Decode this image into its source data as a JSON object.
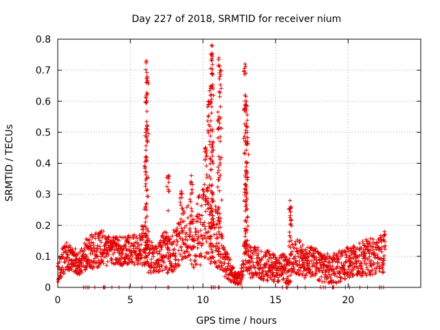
{
  "chart_data": {
    "type": "scatter",
    "title": "Day 227 of 2018, SRMTID for receiver nium",
    "xlabel": "GPS time / hours",
    "ylabel": "SRMTID / TECUs",
    "xlim": [
      0,
      25
    ],
    "ylim": [
      0,
      0.8
    ],
    "grid": true,
    "marker": "+",
    "color": "#e00000",
    "x_ticks": [
      0,
      5,
      10,
      15,
      20
    ],
    "x_tick_labels": [
      "0",
      "5",
      "10",
      "15",
      "20"
    ],
    "y_ticks": [
      0,
      0.1,
      0.2,
      0.3,
      0.4,
      0.5,
      0.6,
      0.7,
      0.8
    ],
    "y_tick_labels": [
      "0",
      "0.1",
      "0.2",
      "0.3",
      "0.4",
      "0.5",
      "0.6",
      "0.7",
      "0.8"
    ],
    "series": [
      {
        "name": "SRMTID",
        "envelope": {
          "x": [
            0.0,
            0.5,
            1.0,
            1.5,
            2.0,
            2.5,
            3.0,
            3.5,
            4.0,
            4.5,
            5.0,
            5.5,
            5.9,
            6.2,
            6.6,
            7.0,
            7.4,
            7.8,
            8.2,
            8.6,
            9.0,
            9.4,
            9.8,
            10.2,
            10.6,
            11.0,
            11.4,
            11.8,
            12.2,
            12.6,
            12.9,
            13.3,
            13.8,
            14.2,
            14.6,
            15.0,
            15.5,
            15.9,
            16.2,
            16.6,
            17.0,
            17.5,
            18.0,
            18.5,
            19.0,
            19.5,
            20.0,
            20.5,
            21.0,
            21.5,
            22.0,
            22.5
          ],
          "y": [
            0.05,
            0.1,
            0.09,
            0.08,
            0.11,
            0.12,
            0.13,
            0.12,
            0.12,
            0.11,
            0.12,
            0.12,
            0.14,
            0.1,
            0.09,
            0.1,
            0.12,
            0.1,
            0.14,
            0.17,
            0.18,
            0.16,
            0.19,
            0.21,
            0.18,
            0.16,
            0.09,
            0.06,
            0.03,
            0.03,
            0.12,
            0.08,
            0.08,
            0.07,
            0.07,
            0.06,
            0.06,
            0.05,
            0.09,
            0.1,
            0.08,
            0.08,
            0.07,
            0.06,
            0.06,
            0.07,
            0.08,
            0.09,
            0.09,
            0.1,
            0.09,
            0.12
          ],
          "spread": [
            0.04,
            0.05,
            0.04,
            0.04,
            0.05,
            0.06,
            0.06,
            0.05,
            0.05,
            0.05,
            0.05,
            0.05,
            0.07,
            0.06,
            0.05,
            0.05,
            0.07,
            0.06,
            0.08,
            0.09,
            0.09,
            0.1,
            0.12,
            0.12,
            0.11,
            0.1,
            0.06,
            0.04,
            0.02,
            0.02,
            0.06,
            0.05,
            0.05,
            0.05,
            0.05,
            0.04,
            0.05,
            0.04,
            0.06,
            0.06,
            0.05,
            0.05,
            0.05,
            0.05,
            0.05,
            0.05,
            0.05,
            0.05,
            0.06,
            0.06,
            0.06,
            0.07
          ]
        },
        "peaks": [
          {
            "x": 6.1,
            "y": 0.73
          },
          {
            "x": 6.15,
            "y": 0.68
          },
          {
            "x": 6.1,
            "y": 0.62
          },
          {
            "x": 6.15,
            "y": 0.52
          },
          {
            "x": 6.05,
            "y": 0.42
          },
          {
            "x": 7.6,
            "y": 0.36
          },
          {
            "x": 8.5,
            "y": 0.31
          },
          {
            "x": 9.2,
            "y": 0.36
          },
          {
            "x": 10.2,
            "y": 0.45
          },
          {
            "x": 10.4,
            "y": 0.6
          },
          {
            "x": 10.6,
            "y": 0.78
          },
          {
            "x": 10.6,
            "y": 0.75
          },
          {
            "x": 10.65,
            "y": 0.69
          },
          {
            "x": 10.55,
            "y": 0.65
          },
          {
            "x": 11.1,
            "y": 0.74
          },
          {
            "x": 11.2,
            "y": 0.7
          },
          {
            "x": 11.1,
            "y": 0.55
          },
          {
            "x": 12.9,
            "y": 0.72
          },
          {
            "x": 12.9,
            "y": 0.62
          },
          {
            "x": 13.0,
            "y": 0.6
          },
          {
            "x": 13.05,
            "y": 0.5
          },
          {
            "x": 13.0,
            "y": 0.4
          },
          {
            "x": 12.95,
            "y": 0.33
          },
          {
            "x": 16.0,
            "y": 0.28
          },
          {
            "x": 16.05,
            "y": 0.26
          },
          {
            "x": 22.5,
            "y": 0.18
          }
        ]
      }
    ]
  }
}
